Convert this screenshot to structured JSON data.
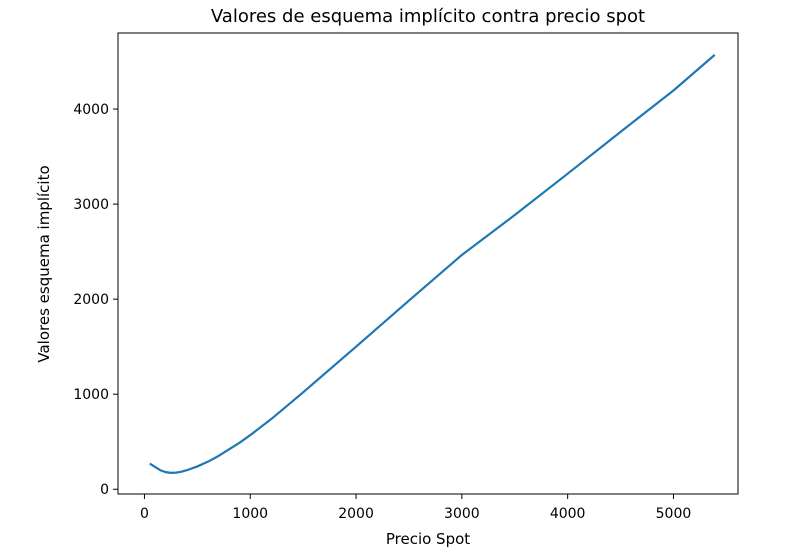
{
  "chart_data": {
    "type": "line",
    "title": "Valores de esquema implícito contra precio spot",
    "xlabel": "Precio Spot",
    "ylabel": "Valores esquema implícito",
    "xlim": [
      -250,
      5610
    ],
    "ylim": [
      -50,
      4800
    ],
    "x_ticks": [
      0,
      1000,
      2000,
      3000,
      4000,
      5000
    ],
    "y_ticks": [
      0,
      1000,
      2000,
      3000,
      4000
    ],
    "x_tick_labels": [
      "0",
      "1000",
      "2000",
      "3000",
      "4000",
      "5000"
    ],
    "y_tick_labels": [
      "0",
      "1000",
      "2000",
      "3000",
      "4000"
    ],
    "grid": false,
    "series": [
      {
        "color": "#1f77b4",
        "x": [
          50,
          100,
          150,
          200,
          250,
          300,
          350,
          400,
          500,
          600,
          700,
          800,
          900,
          1000,
          1200,
          1500,
          2000,
          2500,
          3000,
          3500,
          4000,
          4500,
          5000,
          5390
        ],
        "y": [
          270,
          235,
          200,
          180,
          172,
          175,
          185,
          200,
          240,
          290,
          350,
          420,
          490,
          570,
          740,
          1020,
          1500,
          1985,
          2465,
          2885,
          3320,
          3760,
          4195,
          4570
        ]
      }
    ]
  }
}
